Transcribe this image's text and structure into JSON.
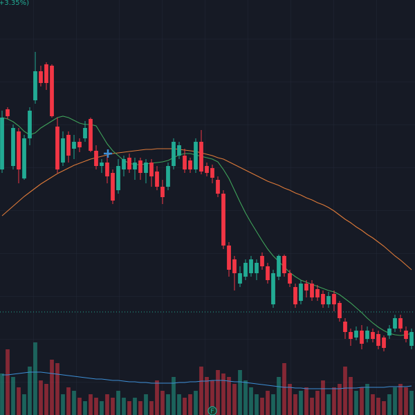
{
  "chart_data": {
    "type": "candlestick",
    "legend_text": "+3.35%)",
    "marker_label": "F",
    "ylim": [
      0,
      600
    ],
    "volume_lim": [
      0,
      110
    ],
    "up_color": "#22ab94",
    "down_color": "#f23645",
    "price_line": 149,
    "open": [
      355,
      442,
      360,
      410,
      342,
      400,
      455,
      497,
      507,
      505,
      417,
      365,
      405,
      385,
      395,
      400,
      428,
      382,
      360,
      365,
      350,
      325,
      355,
      372,
      355,
      368,
      350,
      365,
      352,
      330,
      330,
      360,
      375,
      375,
      368,
      355,
      395,
      360,
      357,
      340,
      320,
      245,
      225,
      190,
      200,
      205,
      205,
      230,
      215,
      160,
      200,
      230,
      205,
      185,
      165,
      190,
      190,
      182,
      175,
      160,
      175,
      162,
      135,
      120,
      112,
      122,
      110,
      120,
      117,
      112,
      115,
      125,
      140,
      122,
      100
    ],
    "high": [
      440,
      445,
      420,
      415,
      405,
      445,
      525,
      505,
      510,
      507,
      430,
      410,
      410,
      405,
      400,
      425,
      430,
      390,
      370,
      375,
      355,
      370,
      375,
      378,
      372,
      372,
      370,
      370,
      360,
      340,
      365,
      400,
      395,
      385,
      372,
      400,
      412,
      365,
      362,
      345,
      325,
      250,
      230,
      215,
      225,
      230,
      225,
      235,
      220,
      210,
      232,
      232,
      210,
      190,
      195,
      195,
      195,
      188,
      180,
      178,
      180,
      165,
      140,
      125,
      128,
      130,
      128,
      125,
      122,
      115,
      130,
      145,
      145,
      128,
      125
    ],
    "low": [
      350,
      428,
      355,
      335,
      340,
      390,
      450,
      475,
      470,
      430,
      350,
      360,
      365,
      370,
      380,
      395,
      380,
      355,
      350,
      335,
      305,
      320,
      345,
      350,
      340,
      340,
      335,
      330,
      325,
      305,
      325,
      355,
      370,
      350,
      350,
      350,
      348,
      345,
      335,
      315,
      240,
      200,
      180,
      185,
      195,
      200,
      195,
      210,
      190,
      155,
      195,
      200,
      185,
      155,
      160,
      170,
      165,
      165,
      155,
      155,
      150,
      135,
      110,
      100,
      108,
      95,
      105,
      105,
      95,
      92,
      110,
      120,
      120,
      105,
      95
    ],
    "close": [
      430,
      432,
      415,
      355,
      400,
      440,
      497,
      480,
      480,
      432,
      355,
      400,
      375,
      395,
      387,
      415,
      382,
      360,
      365,
      345,
      310,
      360,
      370,
      355,
      365,
      350,
      365,
      345,
      330,
      315,
      360,
      395,
      390,
      355,
      355,
      395,
      352,
      350,
      343,
      320,
      245,
      210,
      205,
      205,
      220,
      225,
      220,
      215,
      195,
      205,
      230,
      205,
      190,
      160,
      190,
      180,
      170,
      170,
      160,
      172,
      160,
      140,
      120,
      110,
      122,
      103,
      122,
      110,
      100,
      97,
      125,
      140,
      125,
      110,
      120
    ],
    "volume": [
      60,
      95,
      55,
      40,
      30,
      70,
      105,
      50,
      45,
      80,
      75,
      30,
      40,
      35,
      25,
      20,
      30,
      25,
      20,
      30,
      25,
      35,
      25,
      20,
      25,
      20,
      30,
      20,
      50,
      35,
      30,
      55,
      30,
      25,
      30,
      35,
      70,
      55,
      50,
      65,
      60,
      55,
      45,
      65,
      50,
      40,
      30,
      25,
      35,
      30,
      55,
      75,
      45,
      30,
      35,
      40,
      25,
      35,
      50,
      30,
      40,
      45,
      70,
      55,
      35,
      40,
      45,
      30,
      25,
      20,
      30,
      40,
      45,
      40,
      35
    ],
    "series": [
      {
        "color": "#e07b39",
        "values": [
          288,
          295,
          302,
          309,
          316,
          322,
          328,
          334,
          339,
          344,
          349,
          353,
          357,
          361,
          364,
          367,
          370,
          372,
          374,
          376,
          378,
          379,
          380,
          381,
          382,
          383,
          384,
          384,
          385,
          385,
          385,
          385,
          384,
          383,
          382,
          381,
          379,
          377,
          375,
          372,
          370,
          366,
          362,
          358,
          354,
          350,
          346,
          342,
          338,
          335,
          332,
          328,
          325,
          321,
          318,
          314,
          311,
          307,
          304,
          300,
          295,
          289,
          283,
          278,
          272,
          267,
          261,
          256,
          250,
          244,
          237,
          230,
          224,
          217,
          210
        ]
      },
      {
        "color": "#3fa35a",
        "values": [
          430,
          428,
          424,
          418,
          410,
          405,
          408,
          415,
          420,
          425,
          430,
          432,
          430,
          426,
          422,
          420,
          420,
          418,
          405,
          392,
          382,
          375,
          368,
          364,
          362,
          362,
          363,
          364,
          365,
          366,
          368,
          372,
          376,
          378,
          378,
          376,
          374,
          372,
          370,
          366,
          355,
          342,
          325,
          308,
          292,
          278,
          265,
          252,
          240,
          230,
          222,
          214,
          206,
          200,
          195,
          192,
          189,
          186,
          183,
          180,
          178,
          174,
          168,
          162,
          155,
          148,
          140,
          133,
          127,
          122,
          118,
          116,
          115,
          116,
          118
        ]
      },
      {
        "color": "#3d8fd6",
        "axis": "volume",
        "values": [
          58,
          58,
          59,
          60,
          61,
          62,
          62,
          62,
          61,
          60,
          59,
          58,
          57,
          56,
          55,
          54,
          53,
          52,
          52,
          51,
          50,
          50,
          49,
          48,
          48,
          47,
          47,
          46,
          46,
          46,
          46,
          46,
          47,
          47,
          48,
          48,
          49,
          49,
          50,
          50,
          50,
          49,
          48,
          48,
          47,
          46,
          45,
          44,
          43,
          42,
          41,
          40,
          40,
          39,
          39,
          38,
          38,
          38,
          38,
          38,
          38,
          38,
          39,
          39,
          39,
          40,
          40,
          40,
          40,
          40,
          41,
          41,
          41,
          41,
          42
        ]
      }
    ]
  }
}
